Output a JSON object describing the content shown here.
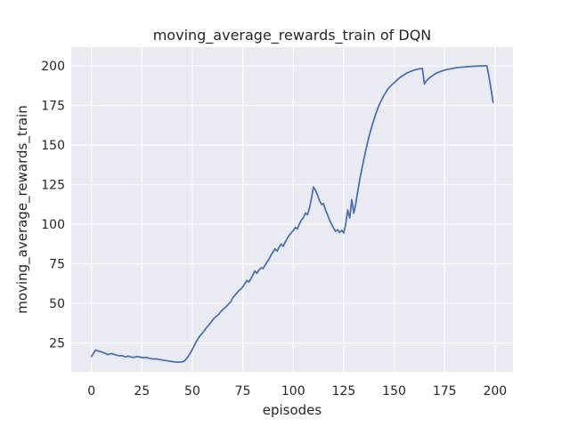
{
  "chart_data": {
    "type": "line",
    "title": "moving_average_rewards_train of DQN",
    "xlabel": "episodes",
    "ylabel": "moving_average_rewards_train",
    "x_ticks": [
      0,
      25,
      50,
      75,
      100,
      125,
      150,
      175,
      200
    ],
    "x_tick_labels": [
      "0",
      "25",
      "50",
      "75",
      "100",
      "125",
      "150",
      "175",
      "200"
    ],
    "y_ticks": [
      25,
      50,
      75,
      100,
      125,
      150,
      175,
      200
    ],
    "y_tick_labels": [
      "25",
      "50",
      "75",
      "100",
      "125",
      "150",
      "175",
      "200"
    ],
    "xlim": [
      -10.0,
      208.9
    ],
    "ylim": [
      6.8,
      211.8
    ],
    "grid": true,
    "legend": "none",
    "series": [
      {
        "name": "moving_average_rewards_train",
        "x_start": 0,
        "x_step": 1,
        "values": [
          16.5,
          18.5,
          20.5,
          20.1,
          19.7,
          19.4,
          18.9,
          18.4,
          17.7,
          18.0,
          18.3,
          17.9,
          17.5,
          17.2,
          16.9,
          17.1,
          16.6,
          16.3,
          16.7,
          16.4,
          16.1,
          15.9,
          16.3,
          16.5,
          16.1,
          15.9,
          15.7,
          16.0,
          15.6,
          15.3,
          15.1,
          14.9,
          15.0,
          14.7,
          14.5,
          14.3,
          14.1,
          13.9,
          13.7,
          13.5,
          13.3,
          13.1,
          13.0,
          12.9,
          13.0,
          13.1,
          13.6,
          14.9,
          16.6,
          18.6,
          21.0,
          23.5,
          26.0,
          28.1,
          29.9,
          31.3,
          32.9,
          34.7,
          36.1,
          37.7,
          39.4,
          40.9,
          41.9,
          43.1,
          44.7,
          46.0,
          47.1,
          48.3,
          49.7,
          50.9,
          53.5,
          55.0,
          56.5,
          58.0,
          59.0,
          60.5,
          62.5,
          64.5,
          63.5,
          65.5,
          68.0,
          70.5,
          69.0,
          71.0,
          72.5,
          72.0,
          74.0,
          76.0,
          78.0,
          80.5,
          82.5,
          84.5,
          83.0,
          85.5,
          87.5,
          86.0,
          88.5,
          91.0,
          93.0,
          94.5,
          96.0,
          98.0,
          97.0,
          100.0,
          102.5,
          104.0,
          107.0,
          106.0,
          110.0,
          116.0,
          123.5,
          121.5,
          118.5,
          115.0,
          112.5,
          113.0,
          109.0,
          106.0,
          102.5,
          100.0,
          97.5,
          95.5,
          96.5,
          94.8,
          96.2,
          94.5,
          100.0,
          109.0,
          104.0,
          115.5,
          107.0,
          113.0,
          121.0,
          128.5,
          135.0,
          141.0,
          147.0,
          152.5,
          157.5,
          162.0,
          166.0,
          170.0,
          173.5,
          176.5,
          179.0,
          181.5,
          183.5,
          185.5,
          187.0,
          188.2,
          189.3,
          190.5,
          191.7,
          192.7,
          193.6,
          194.4,
          195.2,
          195.9,
          196.4,
          196.9,
          197.3,
          197.7,
          198.0,
          198.2,
          198.4,
          188.6,
          190.5,
          191.8,
          192.9,
          193.8,
          194.7,
          195.4,
          196.0,
          196.4,
          196.9,
          197.3,
          197.6,
          197.9,
          198.1,
          198.3,
          198.6,
          198.8,
          199.0,
          199.1,
          199.2,
          199.3,
          199.4,
          199.5,
          199.6,
          199.7,
          199.8,
          199.8,
          199.9,
          199.9,
          200.0,
          200.0,
          200.0,
          193.0,
          185.5,
          177.0
        ]
      }
    ],
    "colors": {
      "line": "#4C72B0",
      "plot_background": "#EAEAF2",
      "gridline": "#FFFFFF",
      "figure_background": "#FFFFFF",
      "text": "#262626"
    }
  }
}
